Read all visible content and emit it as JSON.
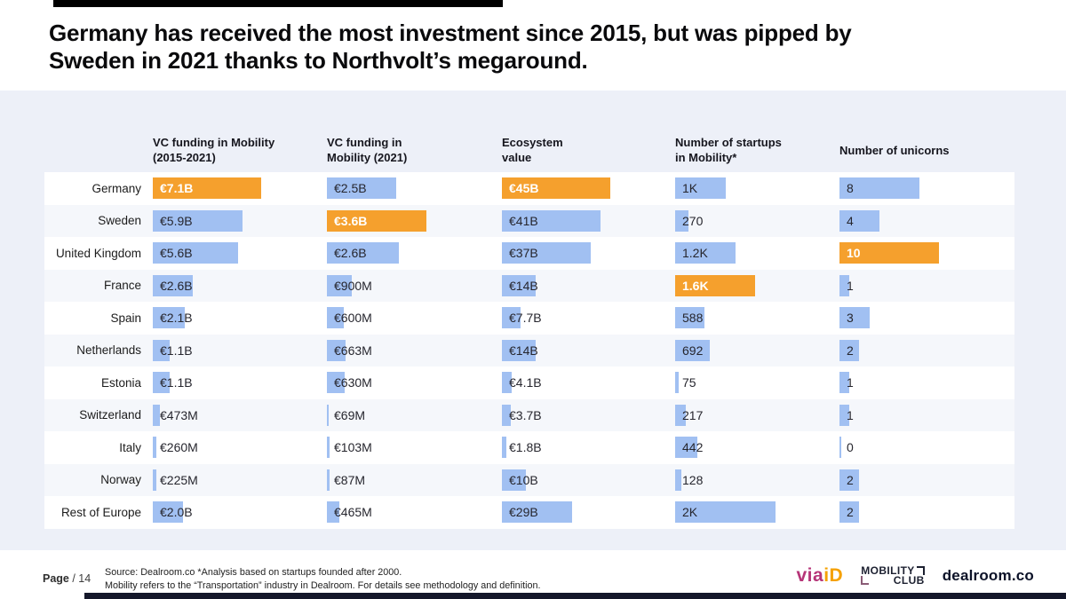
{
  "header": {
    "title_line1": "Germany has received the most investment since 2015, but was pipped by",
    "title_line2": "Sweden in 2021 thanks to Northvolt’s megaround."
  },
  "chart_data": {
    "type": "bar",
    "orientation": "horizontal",
    "title": "Germany has received the most investment since 2015, but was pipped by Sweden in 2021 thanks to Northvolt’s megaround.",
    "bar_color": "#a1c0f2",
    "highlight_color": "#f5a02d",
    "grid": false,
    "legend_position": "none",
    "categories": [
      "Germany",
      "Sweden",
      "United Kingdom",
      "France",
      "Spain",
      "Netherlands",
      "Estonia",
      "Switzerland",
      "Italy",
      "Norway",
      "Rest of Europe"
    ],
    "series": [
      {
        "name": "VC funding in Mobility (2015-2021)",
        "header": "VC funding in Mobility\n(2015-2021)",
        "labels": [
          "€7.1B",
          "€5.9B",
          "€5.6B",
          "€2.6B",
          "€2.1B",
          "€1.1B",
          "€1.1B",
          "€473M",
          "€260M",
          "€225M",
          "€2.0B"
        ],
        "values_eur_billions": [
          7.1,
          5.9,
          5.6,
          2.6,
          2.1,
          1.1,
          1.1,
          0.473,
          0.26,
          0.225,
          2.0
        ],
        "axis_max": 7.1,
        "highlight_index": 0
      },
      {
        "name": "VC funding in Mobility (2021)",
        "header": "VC funding in\nMobility (2021)",
        "labels": [
          "€2.5B",
          "€3.6B",
          "€2.6B",
          "€900M",
          "€600M",
          "€663M",
          "€630M",
          "€69M",
          "€103M",
          "€87M",
          "€465M"
        ],
        "values_eur_billions": [
          2.5,
          3.6,
          2.6,
          0.9,
          0.6,
          0.663,
          0.63,
          0.069,
          0.103,
          0.087,
          0.465
        ],
        "axis_max": 3.6,
        "highlight_index": 1
      },
      {
        "name": "Ecosystem value",
        "header": "Ecosystem\nvalue",
        "labels": [
          "€45B",
          "€41B",
          "€37B",
          "€14B",
          "€7.7B",
          "€14B",
          "€4.1B",
          "€3.7B",
          "€1.8B",
          "€10B",
          "€29B"
        ],
        "values_eur_billions": [
          45,
          41,
          37,
          14,
          7.7,
          14,
          4.1,
          3.7,
          1.8,
          10,
          29
        ],
        "axis_max": 45,
        "highlight_index": 0
      },
      {
        "name": "Number of startups in Mobility*",
        "header": "Number of startups\nin Mobility*",
        "labels": [
          "1K",
          "270",
          "1.2K",
          "1.6K",
          "588",
          "692",
          "75",
          "217",
          "442",
          "128",
          "2K"
        ],
        "values_count": [
          1000,
          270,
          1200,
          1600,
          588,
          692,
          75,
          217,
          442,
          128,
          2000
        ],
        "axis_max": 2000,
        "highlight_index": 3
      },
      {
        "name": "Number of unicorns",
        "header": "Number of unicorns",
        "labels": [
          "8",
          "4",
          "10",
          "1",
          "3",
          "2",
          "1",
          "1",
          "0",
          "2",
          "2"
        ],
        "values_count": [
          8,
          4,
          10,
          1,
          3,
          2,
          1,
          1,
          0,
          2,
          2
        ],
        "axis_max": 10,
        "highlight_index": 2
      }
    ]
  },
  "footer": {
    "page_bold": "Page",
    "page_rest": " / 14",
    "source_line1": "Source: Dealroom.co  *Analysis based on startups founded after 2000.",
    "source_line2": "Mobility refers to the “Transportation” industry in Dealroom. For details see methodology and definition.",
    "logos": {
      "via": "via",
      "id": "iD",
      "mobility_top": "MOBILITY",
      "mobility_bottom": "CLUB",
      "dealroom": "dealroom.co"
    }
  }
}
